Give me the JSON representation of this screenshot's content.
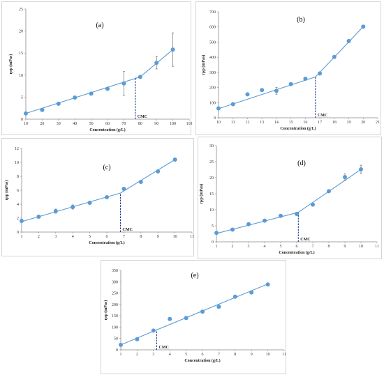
{
  "chart_data": [
    {
      "type": "scatter",
      "label": "(a)",
      "ylabel": "ηsp (mPas)",
      "xlabel": "Concentration (g/L)",
      "xlim": [
        10,
        110
      ],
      "xticks": [
        10,
        20,
        30,
        40,
        50,
        60,
        70,
        80,
        90,
        100,
        110
      ],
      "ylim": [
        0,
        25
      ],
      "yticks": [
        0,
        5,
        10,
        15,
        20,
        25
      ],
      "x": [
        10,
        20,
        30,
        40,
        50,
        60,
        70,
        80,
        90,
        100
      ],
      "y": [
        1.3,
        2.1,
        3.5,
        4.9,
        5.8,
        6.9,
        8.1,
        9.6,
        12.8,
        15.8
      ],
      "err": [
        0.3,
        0.3,
        0.3,
        0.3,
        0.3,
        0.3,
        2.7,
        0.3,
        1.4,
        3.8
      ],
      "fit1": [
        [
          10,
          1.3
        ],
        [
          80,
          9.6
        ]
      ],
      "fit2": [
        [
          80,
          9.6
        ],
        [
          100,
          15.8
        ]
      ],
      "cmc_x": 77,
      "cmc_label": "CMC"
    },
    {
      "type": "scatter",
      "label": "(b)",
      "ylabel": "ηsp (mPas)",
      "xlabel": "Concentration (g/L)",
      "xlim": [
        10,
        21
      ],
      "xticks": [
        10,
        11,
        12,
        13,
        14,
        15,
        16,
        17,
        18,
        19,
        20,
        21
      ],
      "ylim": [
        0,
        700
      ],
      "yticks": [
        0,
        100,
        200,
        300,
        400,
        500,
        600,
        700
      ],
      "x": [
        10,
        11,
        12,
        13,
        14,
        15,
        16,
        17,
        18,
        19,
        20
      ],
      "y": [
        62,
        90,
        155,
        183,
        178,
        222,
        258,
        293,
        402,
        507,
        602
      ],
      "err": [
        0,
        0,
        0,
        0,
        22,
        0,
        0,
        0,
        0,
        0,
        0
      ],
      "fit1": [
        [
          10,
          60
        ],
        [
          16.7,
          270
        ]
      ],
      "fit2": [
        [
          16.7,
          270
        ],
        [
          20,
          602
        ]
      ],
      "cmc_x": 16.7,
      "cmc_label": "CMC"
    },
    {
      "type": "scatter",
      "label": "(c)",
      "ylabel": "ηsp (mPas)",
      "xlabel": "Concentration (g/L)",
      "xlim": [
        1,
        11
      ],
      "xticks": [
        1,
        2,
        3,
        4,
        5,
        6,
        7,
        8,
        9,
        10,
        11
      ],
      "ylim": [
        0,
        12
      ],
      "yticks": [
        0,
        2,
        4,
        6,
        8,
        10,
        12
      ],
      "x": [
        1,
        2,
        3,
        4,
        5,
        6,
        7,
        8,
        9,
        10
      ],
      "y": [
        1.6,
        2.2,
        3.0,
        3.6,
        4.2,
        5.0,
        6.2,
        7.2,
        8.7,
        10.4
      ],
      "err": [
        0,
        0,
        0.3,
        0.3,
        0,
        0,
        0,
        0,
        0,
        0
      ],
      "fit1": [
        [
          1,
          1.5
        ],
        [
          6.8,
          5.6
        ]
      ],
      "fit2": [
        [
          6.8,
          5.6
        ],
        [
          10,
          10.4
        ]
      ],
      "cmc_x": 6.8,
      "cmc_label": "CMC"
    },
    {
      "type": "scatter",
      "label": "(d)",
      "ylabel": "ηsp (mPas)",
      "xlabel": "Concentration (g/L)",
      "xlim": [
        1,
        11
      ],
      "xticks": [
        1,
        2,
        3,
        4,
        5,
        6,
        7,
        8,
        9,
        10,
        11
      ],
      "ylim": [
        0,
        30
      ],
      "yticks": [
        0,
        5,
        10,
        15,
        20,
        25,
        30
      ],
      "x": [
        1,
        2,
        3,
        4,
        5,
        6,
        7,
        8,
        9,
        10
      ],
      "y": [
        2.8,
        3.8,
        5.5,
        6.6,
        8.1,
        8.7,
        11.6,
        15.8,
        20.2,
        22.6
      ],
      "err": [
        0,
        0,
        0,
        0,
        0,
        0.5,
        0,
        0,
        1.0,
        1.3
      ],
      "fit1": [
        [
          1,
          2.6
        ],
        [
          6.1,
          9.2
        ]
      ],
      "fit2": [
        [
          6.1,
          9.2
        ],
        [
          10,
          22.6
        ]
      ],
      "cmc_x": 6.1,
      "cmc_label": "CMC"
    },
    {
      "type": "scatter",
      "label": "(e)",
      "ylabel": "ηsp (mPas)",
      "xlabel": "Concentration (g/L)",
      "xlim": [
        1,
        11
      ],
      "xticks": [
        1,
        2,
        3,
        4,
        5,
        6,
        7,
        8,
        9,
        10,
        11
      ],
      "ylim": [
        0,
        350
      ],
      "yticks": [
        0,
        50,
        100,
        150,
        200,
        250,
        300,
        350
      ],
      "x": [
        1,
        2,
        3,
        4,
        5,
        6,
        7,
        8,
        9,
        10
      ],
      "y": [
        22,
        47,
        85,
        136,
        140,
        168,
        190,
        234,
        253,
        288
      ],
      "err": [
        0,
        0,
        0,
        0,
        0,
        0,
        0,
        0,
        0,
        0
      ],
      "fit1": [
        [
          1,
          22
        ],
        [
          3.2,
          88
        ]
      ],
      "fit2": [
        [
          3.2,
          88
        ],
        [
          10,
          290
        ]
      ],
      "cmc_x": 3.2,
      "cmc_label": "CMC"
    }
  ],
  "colors": {
    "marker": "#5b9bd5",
    "fit": "#5b9bd5",
    "cmc_line": "#1f3a93",
    "axis": "#888888",
    "error": "#555555"
  }
}
